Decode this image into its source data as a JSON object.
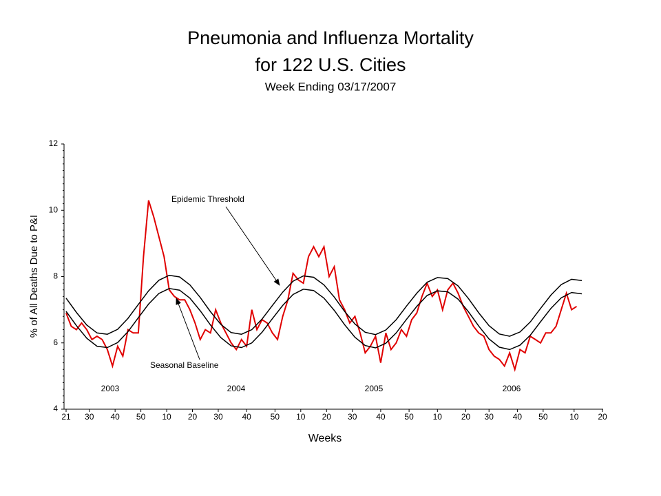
{
  "chart_data": {
    "type": "line",
    "title": [
      "Pneumonia and Influenza Mortality",
      "for 122 U.S. Cities"
    ],
    "subtitle": "Week Ending 03/17/2007",
    "x_label": "Weeks",
    "y_label": "% of All Deaths Due to P&I",
    "year_labels": [
      "2003",
      "2004",
      "2005",
      "2006"
    ],
    "xlim": [
      0,
      208
    ],
    "xticks": [
      {
        "value": 0,
        "label": "21"
      },
      {
        "value": 9,
        "label": "30"
      },
      {
        "value": 19,
        "label": "40"
      },
      {
        "value": 29,
        "label": "50"
      },
      {
        "value": 39,
        "label": "10"
      },
      {
        "value": 49,
        "label": "20"
      },
      {
        "value": 59,
        "label": "30"
      },
      {
        "value": 70,
        "label": "40"
      },
      {
        "value": 81,
        "label": "50"
      },
      {
        "value": 91,
        "label": "10"
      },
      {
        "value": 101,
        "label": "20"
      },
      {
        "value": 111,
        "label": "30"
      },
      {
        "value": 122,
        "label": "40"
      },
      {
        "value": 133,
        "label": "50"
      },
      {
        "value": 144,
        "label": "10"
      },
      {
        "value": 155,
        "label": "20"
      },
      {
        "value": 164,
        "label": "30"
      },
      {
        "value": 175,
        "label": "40"
      },
      {
        "value": 185,
        "label": "50"
      },
      {
        "value": 197,
        "label": "10"
      },
      {
        "value": 208,
        "label": "20"
      }
    ],
    "ylim": [
      4,
      12
    ],
    "yticks": [
      4,
      6,
      8,
      10,
      12
    ],
    "series": [
      {
        "color": "#e00000",
        "x": [
          0,
          2,
          4,
          6,
          8,
          10,
          12,
          14,
          16,
          18,
          20,
          22,
          24,
          26,
          28,
          30,
          32,
          34,
          36,
          38,
          40,
          42,
          44,
          46,
          48,
          50,
          52,
          54,
          56,
          58,
          60,
          62,
          64,
          66,
          68,
          70,
          72,
          74,
          76,
          78,
          80,
          82,
          84,
          86,
          88,
          90,
          92,
          94,
          96,
          98,
          100,
          102,
          104,
          106,
          108,
          110,
          112,
          114,
          116,
          118,
          120,
          122,
          124,
          126,
          128,
          130,
          132,
          134,
          136,
          138,
          140,
          142,
          144,
          146,
          148,
          150,
          152,
          154,
          156,
          158,
          160,
          162,
          164,
          166,
          168,
          170,
          172,
          174,
          176,
          178,
          180,
          182,
          184,
          186,
          188,
          190,
          192,
          194,
          196,
          198
        ],
        "values": [
          6.9,
          6.5,
          6.4,
          6.6,
          6.4,
          6.1,
          6.2,
          6.1,
          5.8,
          5.3,
          5.9,
          5.6,
          6.4,
          6.3,
          6.3,
          8.6,
          10.3,
          9.8,
          9.2,
          8.6,
          7.6,
          7.4,
          7.3,
          7.3,
          7.0,
          6.6,
          6.1,
          6.4,
          6.3,
          7.0,
          6.6,
          6.3,
          6.0,
          5.8,
          6.1,
          5.9,
          7.0,
          6.4,
          6.7,
          6.6,
          6.3,
          6.1,
          6.8,
          7.3,
          8.1,
          7.9,
          7.8,
          8.6,
          8.9,
          8.6,
          8.9,
          8.0,
          8.3,
          7.3,
          7.0,
          6.6,
          6.8,
          6.3,
          5.7,
          5.9,
          6.2,
          5.4,
          6.3,
          5.8,
          6.0,
          6.4,
          6.2,
          6.7,
          6.9,
          7.4,
          7.8,
          7.4,
          7.6,
          7.0,
          7.6,
          7.8,
          7.5,
          7.1,
          6.8,
          6.5,
          6.3,
          6.2,
          5.8,
          5.6,
          5.5,
          5.3,
          5.7,
          5.2,
          5.8,
          5.7,
          6.2,
          6.1,
          6.0,
          6.3,
          6.3,
          6.5,
          7.0,
          7.5,
          7.0,
          7.1
        ]
      },
      {
        "name": "Epidemic Threshold",
        "color": "#000000",
        "x": [
          0,
          4,
          8,
          12,
          16,
          20,
          24,
          28,
          32,
          36,
          40,
          44,
          48,
          52,
          56,
          60,
          64,
          68,
          72,
          76,
          80,
          84,
          88,
          92,
          96,
          100,
          104,
          108,
          112,
          116,
          120,
          124,
          128,
          132,
          136,
          140,
          144,
          148,
          152,
          156,
          160,
          164,
          168,
          172,
          176,
          180,
          184,
          188,
          192,
          196,
          200
        ],
        "values": [
          7.35,
          6.92,
          6.54,
          6.3,
          6.26,
          6.41,
          6.74,
          7.16,
          7.57,
          7.89,
          8.04,
          7.99,
          7.75,
          7.37,
          6.94,
          6.56,
          6.31,
          6.26,
          6.4,
          6.72,
          7.13,
          7.53,
          7.86,
          8.02,
          7.98,
          7.75,
          7.38,
          6.95,
          6.57,
          6.32,
          6.25,
          6.39,
          6.7,
          7.11,
          7.5,
          7.83,
          7.97,
          7.94,
          7.72,
          7.34,
          6.91,
          6.52,
          6.27,
          6.2,
          6.33,
          6.63,
          7.04,
          7.44,
          7.76,
          7.92,
          7.88
        ]
      },
      {
        "name": "Seasonal Baseline",
        "color": "#000000",
        "x": [
          0,
          4,
          8,
          12,
          16,
          20,
          24,
          28,
          32,
          36,
          40,
          44,
          48,
          52,
          56,
          60,
          64,
          68,
          72,
          76,
          80,
          84,
          88,
          92,
          96,
          100,
          104,
          108,
          112,
          116,
          120,
          124,
          128,
          132,
          136,
          140,
          144,
          148,
          152,
          156,
          160,
          164,
          168,
          172,
          176,
          180,
          184,
          188,
          192,
          196,
          200
        ],
        "values": [
          6.95,
          6.52,
          6.14,
          5.9,
          5.86,
          6.01,
          6.34,
          6.76,
          7.17,
          7.49,
          7.64,
          7.59,
          7.35,
          6.97,
          6.54,
          6.16,
          5.91,
          5.86,
          6.0,
          6.32,
          6.73,
          7.13,
          7.46,
          7.62,
          7.58,
          7.35,
          6.98,
          6.55,
          6.17,
          5.92,
          5.85,
          5.99,
          6.3,
          6.71,
          7.1,
          7.43,
          7.57,
          7.54,
          7.32,
          6.94,
          6.51,
          6.12,
          5.87,
          5.8,
          5.93,
          6.23,
          6.64,
          7.04,
          7.36,
          7.52,
          7.48
        ]
      }
    ]
  }
}
